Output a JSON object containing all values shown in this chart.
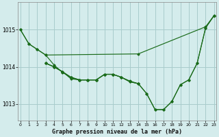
{
  "title": "Graphe pression niveau de la mer (hPa)",
  "bg_color": "#d4ecec",
  "grid_color": "#a8cccc",
  "line_color": "#1a6b1a",
  "xlim": [
    -0.3,
    23.3
  ],
  "ylim": [
    1012.55,
    1015.75
  ],
  "yticks": [
    1013,
    1014,
    1015
  ],
  "xticks": [
    0,
    1,
    2,
    3,
    4,
    5,
    6,
    7,
    8,
    9,
    10,
    11,
    12,
    13,
    14,
    15,
    16,
    17,
    18,
    19,
    20,
    21,
    22,
    23
  ],
  "series": [
    {
      "x": [
        0,
        1,
        2,
        3,
        14,
        22,
        23
      ],
      "y": [
        1015.0,
        1014.62,
        1014.47,
        1014.32,
        1014.35,
        1015.08,
        1015.38
      ]
    },
    {
      "x": [
        0,
        1,
        2,
        3,
        4,
        5,
        6,
        7,
        8,
        9,
        10,
        11,
        12,
        13,
        14,
        15,
        16,
        17,
        18,
        19,
        20,
        21,
        22,
        23
      ],
      "y": [
        1015.0,
        1014.62,
        1014.47,
        1014.32,
        1014.05,
        1013.85,
        1013.72,
        1013.65,
        1013.65,
        1013.65,
        1013.8,
        1013.8,
        1013.72,
        1013.6,
        1013.55,
        1013.28,
        1012.85,
        1012.85,
        1013.07,
        1013.52,
        1013.65,
        1014.1,
        1015.05,
        1015.38
      ]
    },
    {
      "x": [
        3,
        4,
        5,
        6,
        7,
        8,
        9
      ],
      "y": [
        1014.1,
        1014.0,
        1013.87,
        1013.68,
        1013.65,
        1013.65,
        1013.65
      ]
    },
    {
      "x": [
        3,
        4,
        5,
        6,
        7,
        8,
        9,
        10,
        11,
        12,
        13,
        14
      ],
      "y": [
        1014.1,
        1014.0,
        1013.87,
        1013.72,
        1013.65,
        1013.65,
        1013.65,
        1013.8,
        1013.8,
        1013.72,
        1013.62,
        1013.55
      ]
    },
    {
      "x": [
        3,
        4,
        5,
        6,
        7,
        8,
        9,
        10,
        11,
        12,
        13,
        14,
        15,
        16,
        17,
        18,
        19,
        20,
        21,
        22,
        23
      ],
      "y": [
        1014.1,
        1014.0,
        1013.87,
        1013.72,
        1013.65,
        1013.65,
        1013.65,
        1013.8,
        1013.8,
        1013.72,
        1013.6,
        1013.55,
        1013.28,
        1012.85,
        1012.85,
        1013.07,
        1013.52,
        1013.65,
        1014.1,
        1015.05,
        1015.38
      ]
    }
  ]
}
